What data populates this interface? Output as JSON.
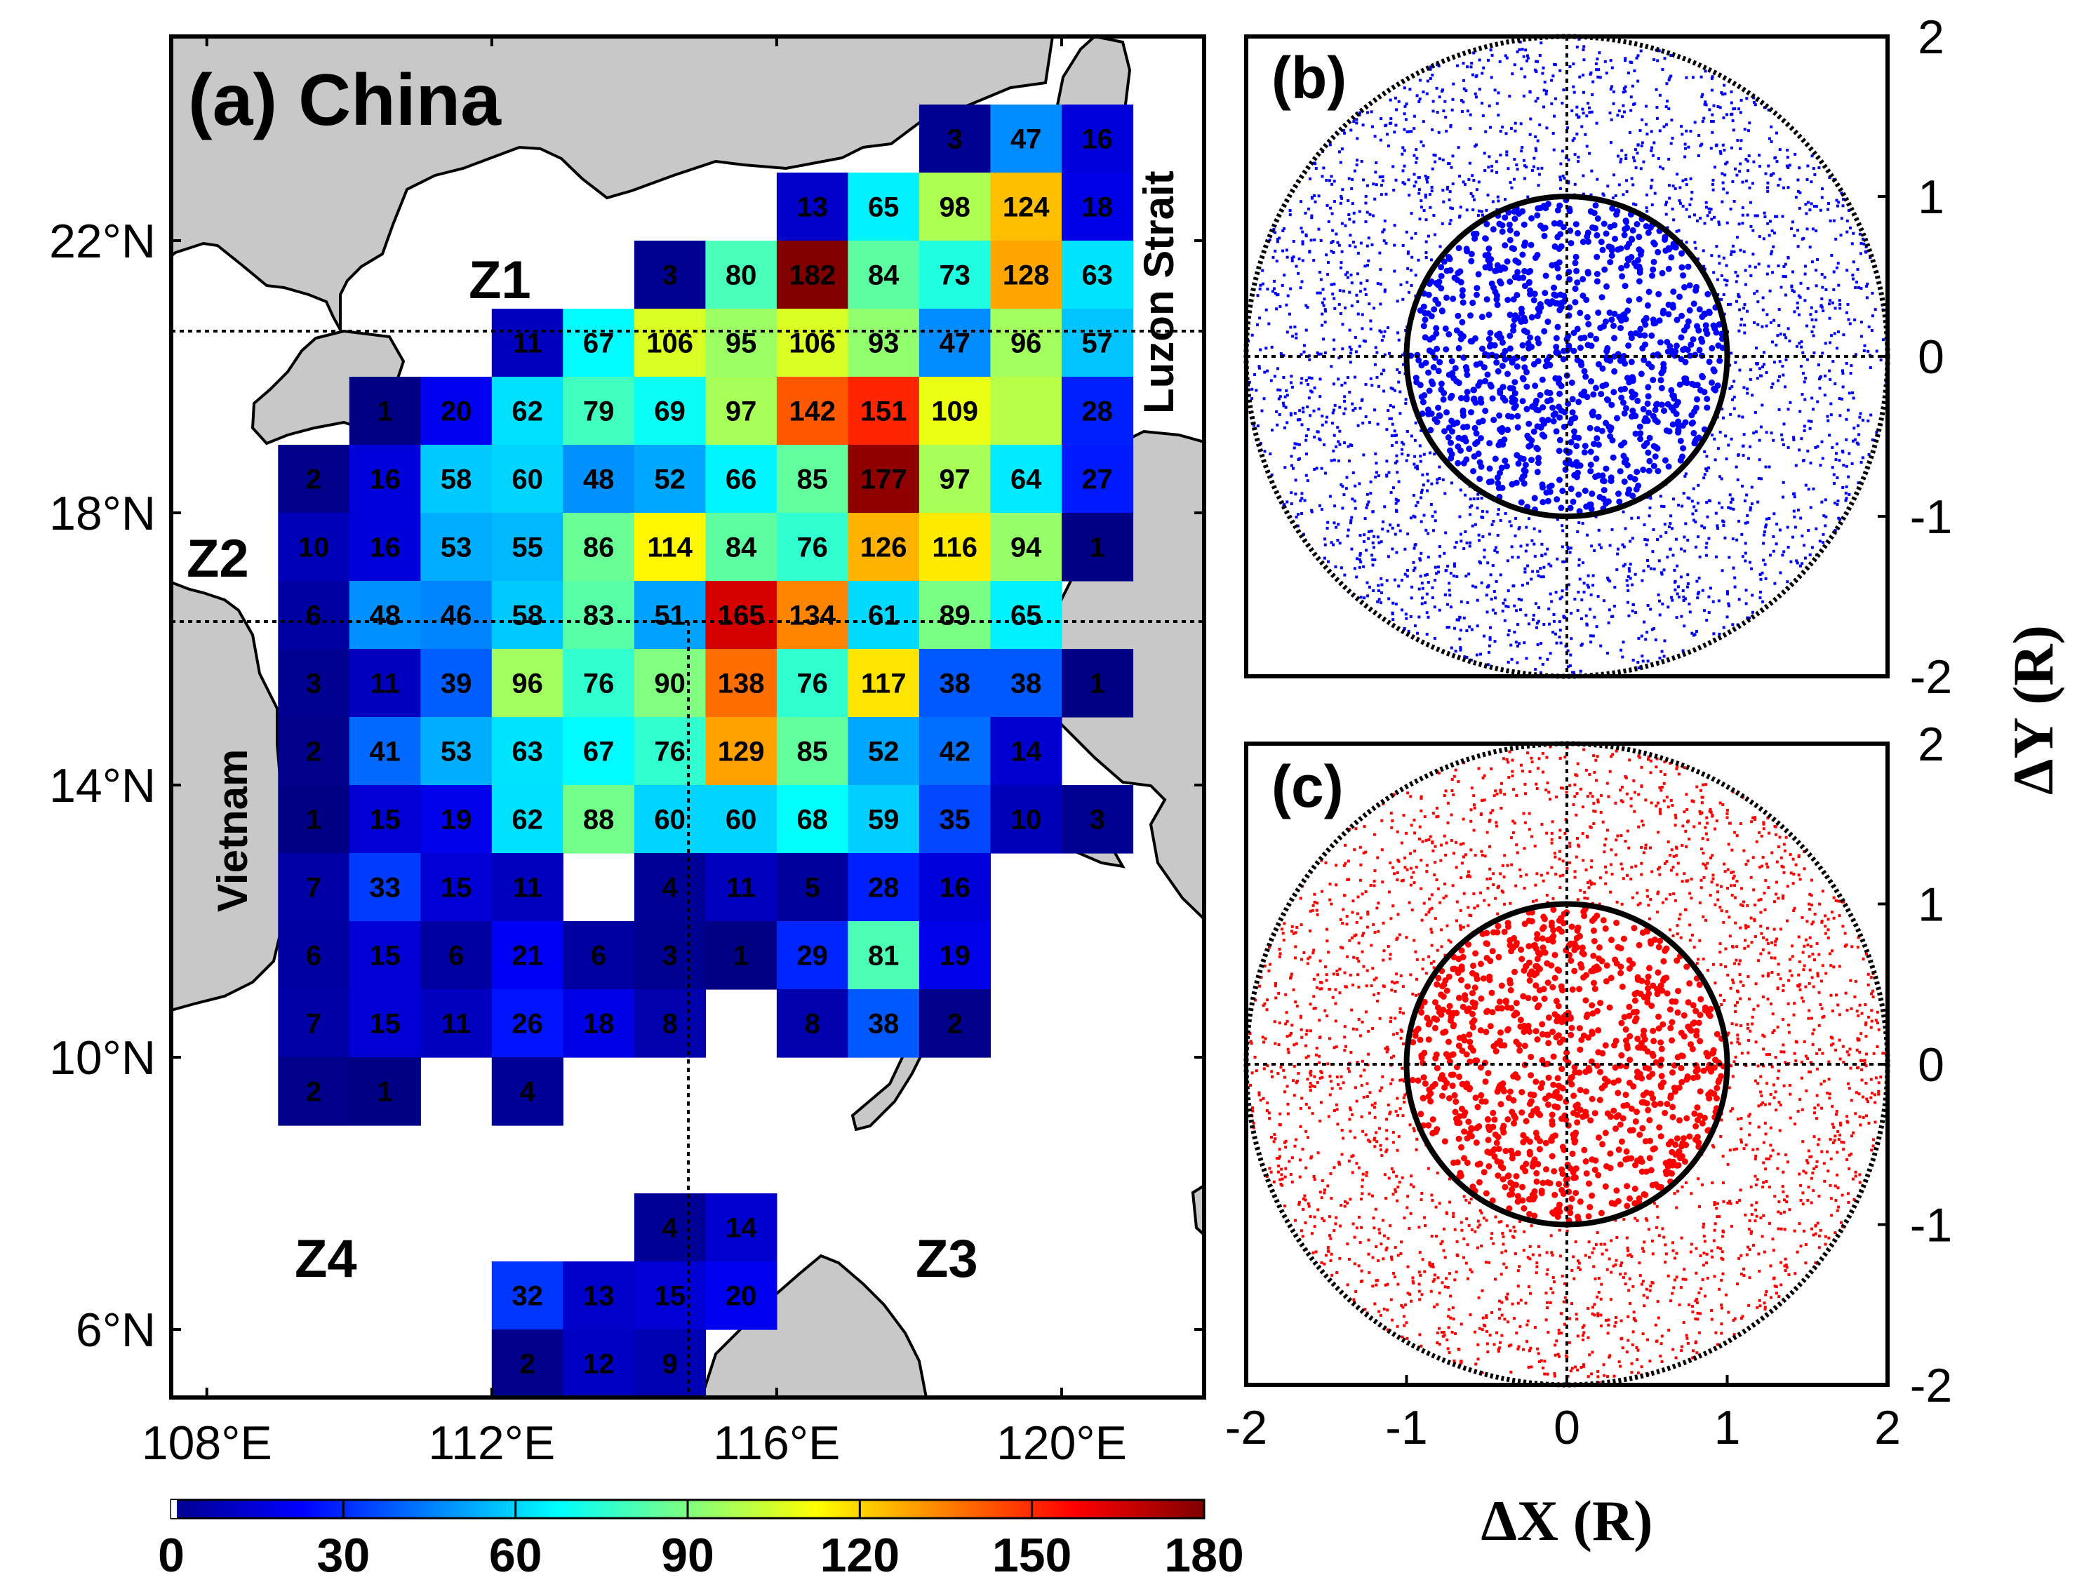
{
  "chart_data": [
    {
      "type": "heatmap",
      "panel_label": "(a)",
      "title": "China",
      "places": [
        "Vietnam",
        "Luzon Strait"
      ],
      "zones": [
        "Z1",
        "Z2",
        "Z3",
        "Z4"
      ],
      "x_ticks": [
        "108°E",
        "112°E",
        "116°E",
        "120°E"
      ],
      "y_ticks": [
        "6°N",
        "10°N",
        "14°N",
        "18°N",
        "22°N"
      ],
      "xlim": [
        107.5,
        122
      ],
      "ylim": [
        5,
        25
      ],
      "colorbar": {
        "min": 0,
        "max": 180,
        "ticks": [
          "0",
          "30",
          "60",
          "90",
          "120",
          "150",
          "180"
        ]
      },
      "zone_boundaries": {
        "lat": [
          20,
          16
        ],
        "lon": 115
      },
      "cells": [
        [
          118,
          23,
          3
        ],
        [
          119,
          23,
          47
        ],
        [
          120,
          23,
          16
        ],
        [
          116,
          22,
          13
        ],
        [
          117,
          22,
          65
        ],
        [
          118,
          22,
          98
        ],
        [
          119,
          22,
          124
        ],
        [
          120,
          22,
          18
        ],
        [
          114,
          21,
          3
        ],
        [
          115,
          21,
          80
        ],
        [
          116,
          21,
          182
        ],
        [
          117,
          21,
          84
        ],
        [
          118,
          21,
          73
        ],
        [
          119,
          21,
          128
        ],
        [
          120,
          21,
          63
        ],
        [
          112,
          20,
          11
        ],
        [
          113,
          20,
          67
        ],
        [
          114,
          20,
          106
        ],
        [
          115,
          20,
          95
        ],
        [
          116,
          20,
          106
        ],
        [
          117,
          20,
          93
        ],
        [
          118,
          20,
          47
        ],
        [
          119,
          20,
          96
        ],
        [
          120,
          20,
          57
        ],
        [
          110,
          19,
          1
        ],
        [
          111,
          19,
          20
        ],
        [
          112,
          19,
          62
        ],
        [
          113,
          19,
          79
        ],
        [
          114,
          19,
          69
        ],
        [
          115,
          19,
          97
        ],
        [
          116,
          19,
          142
        ],
        [
          117,
          19,
          151
        ],
        [
          118,
          19,
          109
        ],
        [
          119,
          19,
          null
        ],
        [
          120,
          19,
          28
        ],
        [
          109,
          18,
          2
        ],
        [
          110,
          18,
          16
        ],
        [
          111,
          18,
          58
        ],
        [
          112,
          18,
          60
        ],
        [
          113,
          18,
          48
        ],
        [
          114,
          18,
          52
        ],
        [
          115,
          18,
          66
        ],
        [
          116,
          18,
          85
        ],
        [
          117,
          18,
          177
        ],
        [
          118,
          18,
          97
        ],
        [
          119,
          18,
          64
        ],
        [
          120,
          18,
          27
        ],
        [
          109,
          17,
          10
        ],
        [
          110,
          17,
          16
        ],
        [
          111,
          17,
          53
        ],
        [
          112,
          17,
          55
        ],
        [
          113,
          17,
          86
        ],
        [
          114,
          17,
          114
        ],
        [
          115,
          17,
          84
        ],
        [
          116,
          17,
          76
        ],
        [
          117,
          17,
          126
        ],
        [
          118,
          17,
          116
        ],
        [
          119,
          17,
          94
        ],
        [
          120,
          17,
          1
        ],
        [
          109,
          16,
          6
        ],
        [
          110,
          16,
          48
        ],
        [
          111,
          16,
          46
        ],
        [
          112,
          16,
          58
        ],
        [
          113,
          16,
          83
        ],
        [
          114,
          16,
          51
        ],
        [
          115,
          16,
          165
        ],
        [
          116,
          16,
          134
        ],
        [
          117,
          16,
          61
        ],
        [
          118,
          16,
          89
        ],
        [
          119,
          16,
          65
        ],
        [
          109,
          15,
          3
        ],
        [
          110,
          15,
          11
        ],
        [
          111,
          15,
          39
        ],
        [
          112,
          15,
          96
        ],
        [
          113,
          15,
          76
        ],
        [
          114,
          15,
          90
        ],
        [
          115,
          15,
          138
        ],
        [
          116,
          15,
          76
        ],
        [
          117,
          15,
          117
        ],
        [
          118,
          15,
          38
        ],
        [
          119,
          15,
          38
        ],
        [
          120,
          15,
          1
        ],
        [
          109,
          14,
          2
        ],
        [
          110,
          14,
          41
        ],
        [
          111,
          14,
          53
        ],
        [
          112,
          14,
          63
        ],
        [
          113,
          14,
          67
        ],
        [
          114,
          14,
          76
        ],
        [
          115,
          14,
          129
        ],
        [
          116,
          14,
          85
        ],
        [
          117,
          14,
          52
        ],
        [
          118,
          14,
          42
        ],
        [
          119,
          14,
          14
        ],
        [
          109,
          13,
          1
        ],
        [
          110,
          13,
          15
        ],
        [
          111,
          13,
          19
        ],
        [
          112,
          13,
          62
        ],
        [
          113,
          13,
          88
        ],
        [
          114,
          13,
          60
        ],
        [
          115,
          13,
          60
        ],
        [
          116,
          13,
          68
        ],
        [
          117,
          13,
          59
        ],
        [
          118,
          13,
          35
        ],
        [
          119,
          13,
          10
        ],
        [
          120,
          13,
          3
        ],
        [
          109,
          12,
          7
        ],
        [
          110,
          12,
          33
        ],
        [
          111,
          12,
          15
        ],
        [
          112,
          12,
          11
        ],
        [
          114,
          12,
          4
        ],
        [
          115,
          12,
          11
        ],
        [
          116,
          12,
          5
        ],
        [
          117,
          12,
          28
        ],
        [
          118,
          12,
          16
        ],
        [
          109,
          11,
          6
        ],
        [
          110,
          11,
          15
        ],
        [
          111,
          11,
          6
        ],
        [
          112,
          11,
          21
        ],
        [
          113,
          11,
          6
        ],
        [
          114,
          11,
          3
        ],
        [
          115,
          11,
          1
        ],
        [
          116,
          11,
          29
        ],
        [
          117,
          11,
          81
        ],
        [
          118,
          11,
          19
        ],
        [
          109,
          10,
          7
        ],
        [
          110,
          10,
          15
        ],
        [
          111,
          10,
          11
        ],
        [
          112,
          10,
          26
        ],
        [
          113,
          10,
          18
        ],
        [
          114,
          10,
          8
        ],
        [
          116,
          10,
          8
        ],
        [
          117,
          10,
          38
        ],
        [
          118,
          10,
          2
        ],
        [
          109,
          9,
          2
        ],
        [
          110,
          9,
          1
        ],
        [
          112,
          9,
          4
        ],
        [
          114,
          7,
          4
        ],
        [
          115,
          7,
          14
        ],
        [
          112,
          6,
          32
        ],
        [
          113,
          6,
          13
        ],
        [
          114,
          6,
          15
        ],
        [
          115,
          6,
          20
        ],
        [
          112,
          5,
          2
        ],
        [
          113,
          5,
          12
        ],
        [
          114,
          5,
          9
        ]
      ]
    },
    {
      "type": "scatter",
      "panel_label": "(b)",
      "color": "#0000ff",
      "x_ticks": [
        "-2",
        "-1",
        "0",
        "1",
        "2"
      ],
      "y_ticks": [
        "2",
        "1",
        "0",
        "-1",
        "-2"
      ],
      "xlim": [
        -2,
        2
      ],
      "ylim": [
        -2,
        2
      ],
      "circles_radius": [
        1,
        2
      ],
      "points": {
        "inner_count": 1000,
        "outer_count": 2500,
        "inner_radius": 1,
        "outer_radius": 2,
        "seed": 7
      }
    },
    {
      "type": "scatter",
      "panel_label": "(c)",
      "color": "#ff0000",
      "x_ticks": [
        "-2",
        "-1",
        "0",
        "1",
        "2"
      ],
      "y_ticks": [
        "2",
        "1",
        "0",
        "-1",
        "-2"
      ],
      "xlim": [
        -2,
        2
      ],
      "ylim": [
        -2,
        2
      ],
      "xlabel": "ΔX (R)",
      "ylabel": "ΔY (R)",
      "circles_radius": [
        1,
        2
      ],
      "points": {
        "inner_count": 1000,
        "outer_count": 2500,
        "inner_radius": 1,
        "outer_radius": 2,
        "seed": 13
      }
    }
  ]
}
